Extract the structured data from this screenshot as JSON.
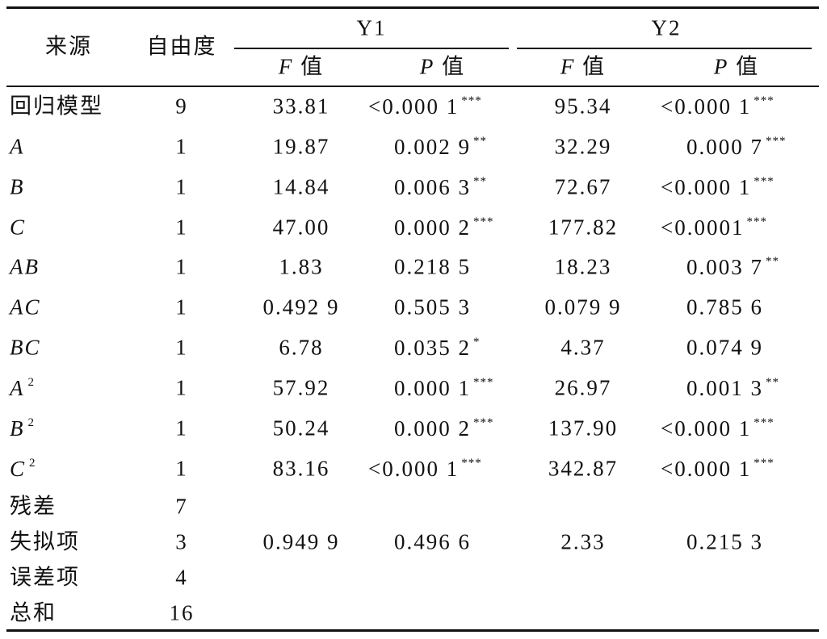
{
  "header": {
    "source": "来源",
    "df": "自由度",
    "groups": [
      "Y1",
      "Y2"
    ],
    "sub": [
      {
        "var": "F",
        "word": "值"
      },
      {
        "var": "P",
        "word": "值"
      },
      {
        "var": "F",
        "word": "值"
      },
      {
        "var": "P",
        "word": "值"
      }
    ]
  },
  "table": {
    "rows": [
      {
        "source": "回归模型",
        "df": "9",
        "cells": [
          {
            "text": "33.81"
          },
          {
            "text": "<0.000 1",
            "stars": "***"
          },
          {
            "text": "95.34"
          },
          {
            "text": "<0.000 1",
            "stars": "***"
          }
        ]
      },
      {
        "source": "A",
        "df": "1",
        "cells": [
          {
            "text": "19.87"
          },
          {
            "text": "0.002 9",
            "stars": "**"
          },
          {
            "text": "32.29"
          },
          {
            "text": "0.000 7",
            "stars": "***"
          }
        ]
      },
      {
        "source": "B",
        "df": "1",
        "cells": [
          {
            "text": "14.84"
          },
          {
            "text": "0.006 3",
            "stars": "**"
          },
          {
            "text": "72.67"
          },
          {
            "text": "<0.000 1",
            "stars": "***"
          }
        ]
      },
      {
        "source": "C",
        "df": "1",
        "cells": [
          {
            "text": "47.00"
          },
          {
            "text": "0.000 2",
            "stars": "***"
          },
          {
            "text": "177.82"
          },
          {
            "text": "<0.0001",
            "stars": "***"
          }
        ]
      },
      {
        "source": "AB",
        "df": "1",
        "cells": [
          {
            "text": "1.83"
          },
          {
            "text": "0.218 5"
          },
          {
            "text": "18.23"
          },
          {
            "text": "0.003 7",
            "stars": "**"
          }
        ]
      },
      {
        "source": "AC",
        "df": "1",
        "cells": [
          {
            "text": "0.492 9"
          },
          {
            "text": "0.505 3"
          },
          {
            "text": "0.079 9"
          },
          {
            "text": "0.785 6"
          }
        ]
      },
      {
        "source": "BC",
        "df": "1",
        "cells": [
          {
            "text": "6.78"
          },
          {
            "text": "0.035 2",
            "stars": "*"
          },
          {
            "text": "4.37"
          },
          {
            "text": "0.074 9"
          }
        ]
      },
      {
        "source": "A",
        "power": "2",
        "df": "1",
        "cells": [
          {
            "text": "57.92"
          },
          {
            "text": "0.000 1",
            "stars": "***"
          },
          {
            "text": "26.97"
          },
          {
            "text": "0.001 3",
            "stars": "**"
          }
        ]
      },
      {
        "source": "B",
        "power": "2",
        "df": "1",
        "cells": [
          {
            "text": "50.24"
          },
          {
            "text": "0.000 2",
            "stars": "***"
          },
          {
            "text": "137.90"
          },
          {
            "text": "<0.000 1",
            "stars": "***"
          }
        ]
      },
      {
        "source": "C",
        "power": "2",
        "df": "1",
        "cells": [
          {
            "text": "83.16"
          },
          {
            "text": "<0.000 1",
            "stars": "***"
          },
          {
            "text": "342.87"
          },
          {
            "text": "<0.000 1",
            "stars": "***"
          }
        ]
      },
      {
        "source": "残差",
        "df": "7",
        "cells": []
      },
      {
        "source": "失拟项",
        "df": "3",
        "cells": [
          {
            "text": "0.949 9"
          },
          {
            "text": "0.496 6"
          },
          {
            "text": "2.33"
          },
          {
            "text": "0.215 3"
          }
        ]
      },
      {
        "source": "误差项",
        "df": "4",
        "cells": []
      },
      {
        "source": "总和",
        "df": "16",
        "cells": []
      }
    ]
  }
}
